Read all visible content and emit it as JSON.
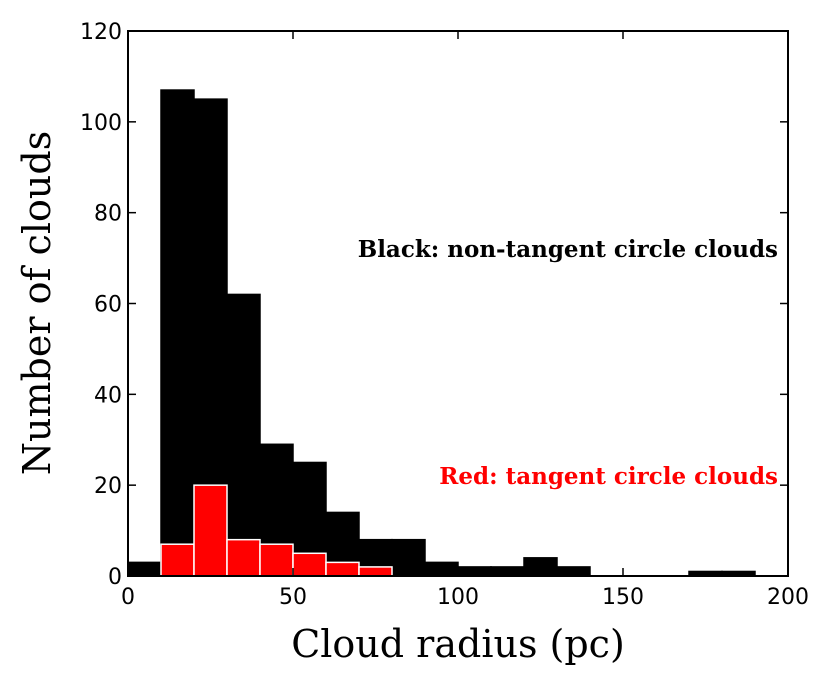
{
  "chart_data": {
    "type": "histogram",
    "xlabel": "Cloud radius (pc)",
    "ylabel": "Number of clouds",
    "xlim": [
      0,
      200
    ],
    "xticks": [
      0,
      50,
      100,
      150,
      200
    ],
    "ylim": [
      0,
      120
    ],
    "yticks": [
      0,
      20,
      40,
      60,
      80,
      100,
      120
    ],
    "series": [
      {
        "color": "#000000",
        "edgecolor": "#000000",
        "bins": [
          0,
          10,
          20,
          30,
          40,
          50,
          60,
          70,
          80,
          90,
          100,
          110,
          120,
          130,
          140,
          150,
          160,
          170,
          180,
          190,
          200
        ],
        "values": [
          3,
          107,
          105,
          62,
          29,
          25,
          14,
          8,
          8,
          3,
          2,
          2,
          4,
          2,
          0,
          0,
          0,
          1,
          1,
          0
        ]
      },
      {
        "color": "#ff0000",
        "edgecolor": "#ffffff",
        "bins": [
          10,
          20,
          30,
          40,
          50,
          60,
          70,
          80
        ],
        "values": [
          7,
          20,
          8,
          7,
          5,
          3,
          2
        ]
      }
    ],
    "annotations": [
      {
        "text": "Black: non-tangent circle clouds",
        "color": "#000000"
      },
      {
        "text": "Red: tangent circle clouds",
        "color": "#ff0000"
      }
    ]
  }
}
